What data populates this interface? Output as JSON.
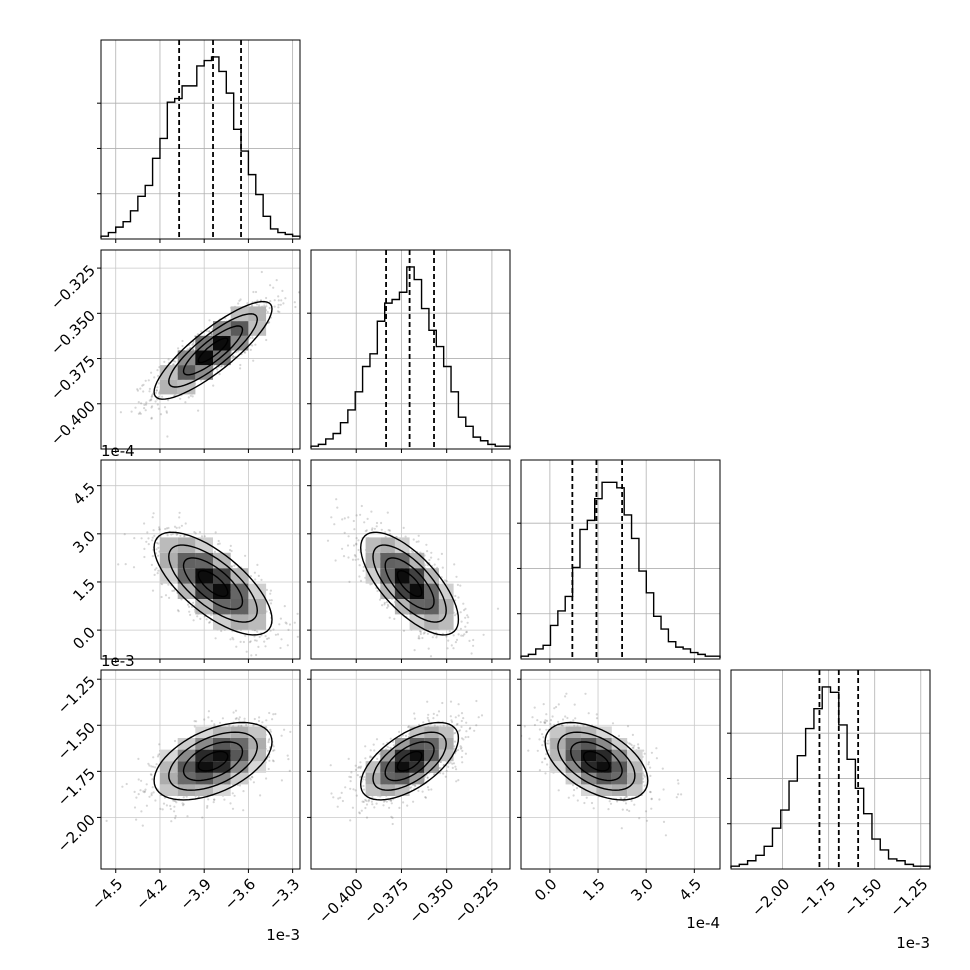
{
  "chart_data": {
    "type": "corner",
    "parameters": [
      {
        "id": "p0",
        "offset_label": "1e-3",
        "range": [
          -4.6,
          -3.25
        ],
        "ticks": [
          -4.5,
          -4.2,
          -3.9,
          -3.6,
          -3.3
        ],
        "tick_labels": [
          "−4.5",
          "−4.2",
          "−3.9",
          "−3.6",
          "−3.3"
        ],
        "quantiles": [
          -4.07,
          -3.84,
          -3.65
        ],
        "center": -3.84,
        "sigma": 0.2
      },
      {
        "id": "p1",
        "offset_label": "",
        "range": [
          -0.425,
          -0.315
        ],
        "ticks": [
          -0.4,
          -0.375,
          -0.35,
          -0.325
        ],
        "tick_labels": [
          "−0.400",
          "−0.375",
          "−0.350",
          "−0.325"
        ],
        "quantiles": [
          -0.3835,
          -0.3705,
          -0.357
        ],
        "center": -0.3705,
        "sigma": 0.0135
      },
      {
        "id": "p2",
        "offset_label": "1e-4",
        "range": [
          -0.9,
          5.3
        ],
        "ticks": [
          0.0,
          1.5,
          3.0,
          4.5
        ],
        "tick_labels": [
          "0.0",
          "1.5",
          "3.0",
          "4.5"
        ],
        "quantiles": [
          0.7,
          1.45,
          2.25
        ],
        "center": 1.45,
        "sigma": 0.8
      },
      {
        "id": "p3",
        "offset_label": "1e-3",
        "range": [
          -2.28,
          -1.2
        ],
        "ticks": [
          -2.0,
          -1.75,
          -1.5,
          -1.25
        ],
        "tick_labels": [
          "−2.00",
          "−1.75",
          "−1.50",
          "−1.25"
        ],
        "quantiles": [
          -1.8,
          -1.695,
          -1.59
        ],
        "center": -1.695,
        "sigma": 0.105
      }
    ],
    "histograms": [
      [
        0.01,
        0.03,
        0.06,
        0.09,
        0.15,
        0.23,
        0.29,
        0.44,
        0.55,
        0.75,
        0.77,
        0.84,
        0.84,
        0.95,
        0.98,
        1.0,
        0.92,
        0.8,
        0.6,
        0.48,
        0.35,
        0.24,
        0.12,
        0.05,
        0.03,
        0.02,
        0.01
      ],
      [
        0.01,
        0.02,
        0.05,
        0.08,
        0.14,
        0.21,
        0.31,
        0.45,
        0.52,
        0.7,
        0.8,
        0.82,
        0.86,
        1.0,
        0.93,
        0.77,
        0.65,
        0.56,
        0.45,
        0.31,
        0.17,
        0.12,
        0.06,
        0.04,
        0.02,
        0.01,
        0.01
      ],
      [
        0.01,
        0.02,
        0.05,
        0.07,
        0.18,
        0.26,
        0.34,
        0.5,
        0.71,
        0.76,
        0.88,
        0.97,
        0.97,
        0.94,
        0.79,
        0.66,
        0.48,
        0.36,
        0.23,
        0.16,
        0.09,
        0.06,
        0.05,
        0.03,
        0.02,
        0.01,
        0.01
      ],
      [
        0.01,
        0.02,
        0.04,
        0.07,
        0.12,
        0.22,
        0.32,
        0.48,
        0.62,
        0.77,
        0.88,
        1.0,
        0.97,
        0.79,
        0.6,
        0.44,
        0.3,
        0.16,
        0.1,
        0.05,
        0.04,
        0.02,
        0.01,
        0.01
      ]
    ],
    "correlations": {
      "1,0": 0.85,
      "2,0": -0.7,
      "2,1": -0.7,
      "3,0": 0.5,
      "3,1": 0.6,
      "3,2": -0.5
    },
    "grid": true
  }
}
